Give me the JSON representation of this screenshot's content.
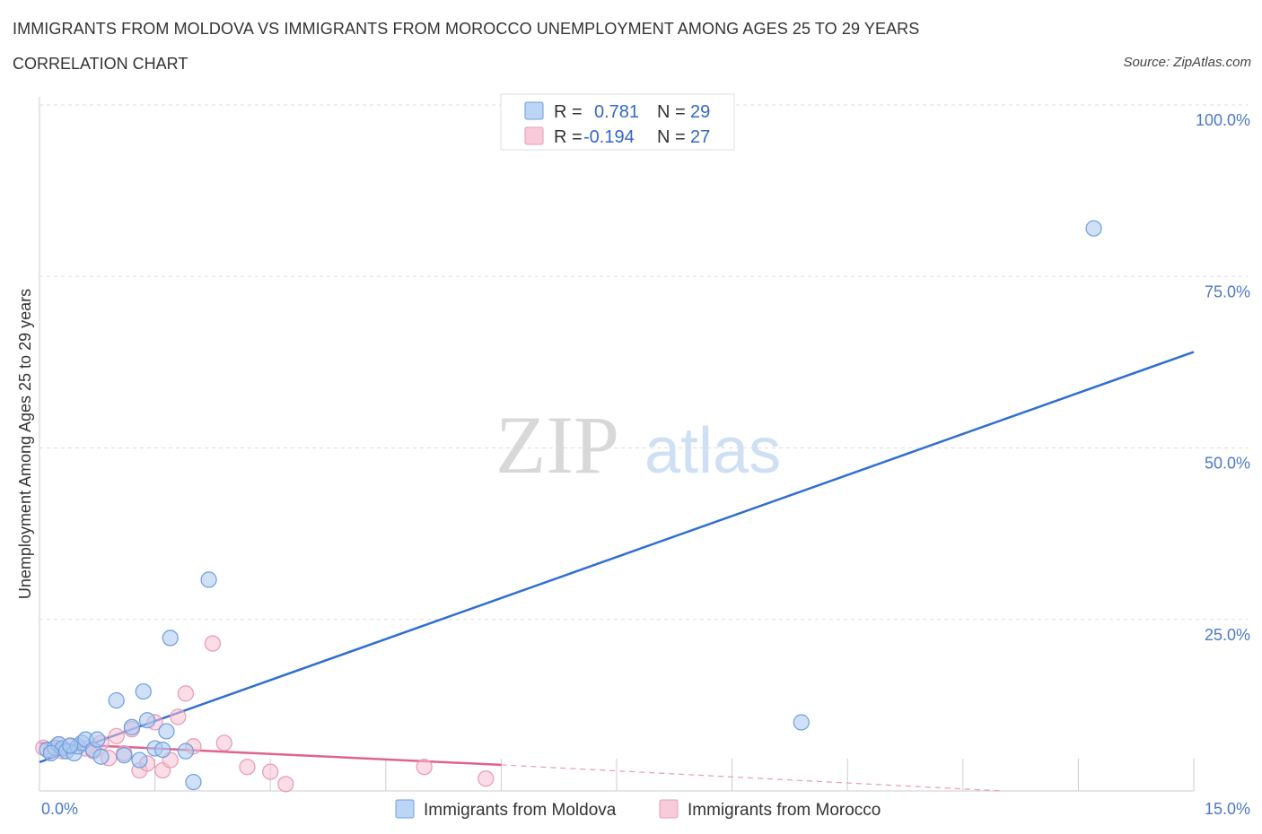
{
  "header": {
    "title": "IMMIGRANTS FROM MOLDOVA VS IMMIGRANTS FROM MOROCCO UNEMPLOYMENT AMONG AGES 25 TO 29 YEARS",
    "subtitle": "CORRELATION CHART",
    "source": "Source: ZipAtlas.com"
  },
  "watermark": {
    "zip": "ZIP",
    "atlas": "atlas"
  },
  "legend": {
    "r_label": "R =",
    "n_label": "N =",
    "moldova": {
      "r": "0.781",
      "n": "29"
    },
    "morocco": {
      "r": "-0.194",
      "n": "27"
    }
  },
  "colors": {
    "moldova_fill": "#aac8f0",
    "moldova_stroke": "#6a9ee0",
    "moldova_line": "#2f6fcf",
    "morocco_fill": "#f6c1d2",
    "morocco_stroke": "#e899b4",
    "morocco_line": "#e0628f"
  },
  "chart_data": {
    "type": "scatter",
    "title": "IMMIGRANTS FROM MOLDOVA VS IMMIGRANTS FROM MOROCCO UNEMPLOYMENT AMONG AGES 25 TO 29 YEARS",
    "xlabel": "",
    "ylabel": "Unemployment Among Ages 25 to 29 years",
    "xlim": [
      0,
      15
    ],
    "ylim": [
      0,
      100
    ],
    "x_tick_labels": [
      "0.0%",
      "15.0%"
    ],
    "y_tick_labels": [
      "100.0%",
      "75.0%",
      "50.0%",
      "25.0%"
    ],
    "y_tick_values": [
      100,
      75,
      50,
      25
    ],
    "series": [
      {
        "name": "Immigrants from Moldova",
        "points": [
          [
            0.1,
            6.0
          ],
          [
            0.2,
            6.3
          ],
          [
            0.25,
            6.8
          ],
          [
            0.3,
            6.2
          ],
          [
            0.35,
            5.8
          ],
          [
            0.45,
            5.5
          ],
          [
            0.5,
            6.5
          ],
          [
            0.55,
            7.0
          ],
          [
            0.6,
            7.5
          ],
          [
            0.7,
            6.0
          ],
          [
            0.75,
            7.5
          ],
          [
            0.8,
            5.0
          ],
          [
            1.0,
            13.2
          ],
          [
            1.1,
            5.2
          ],
          [
            1.2,
            9.3
          ],
          [
            1.3,
            4.5
          ],
          [
            1.35,
            14.5
          ],
          [
            1.4,
            10.3
          ],
          [
            1.5,
            6.2
          ],
          [
            1.6,
            6.0
          ],
          [
            1.65,
            8.7
          ],
          [
            1.7,
            22.3
          ],
          [
            1.9,
            5.8
          ],
          [
            2.0,
            1.3
          ],
          [
            2.2,
            30.8
          ],
          [
            9.9,
            10.0
          ],
          [
            13.7,
            82.0
          ],
          [
            0.15,
            5.5
          ],
          [
            0.4,
            6.6
          ]
        ],
        "trend": {
          "x": [
            0,
            15
          ],
          "y": [
            4.2,
            64.0
          ]
        }
      },
      {
        "name": "Immigrants from Morocco",
        "points": [
          [
            0.05,
            6.3
          ],
          [
            0.15,
            6.0
          ],
          [
            0.25,
            6.8
          ],
          [
            0.4,
            6.5
          ],
          [
            0.6,
            6.2
          ],
          [
            0.7,
            5.8
          ],
          [
            0.8,
            7.0
          ],
          [
            0.9,
            4.8
          ],
          [
            1.0,
            8.0
          ],
          [
            1.1,
            5.5
          ],
          [
            1.2,
            9.0
          ],
          [
            1.3,
            3.0
          ],
          [
            1.4,
            4.0
          ],
          [
            1.5,
            10.0
          ],
          [
            1.6,
            3.0
          ],
          [
            1.7,
            4.5
          ],
          [
            1.8,
            10.8
          ],
          [
            1.9,
            14.2
          ],
          [
            2.0,
            6.5
          ],
          [
            2.25,
            21.5
          ],
          [
            2.4,
            7.0
          ],
          [
            2.7,
            3.5
          ],
          [
            3.0,
            2.8
          ],
          [
            3.2,
            1.0
          ],
          [
            5.0,
            3.5
          ],
          [
            5.8,
            1.8
          ],
          [
            0.3,
            5.8
          ]
        ],
        "trend": {
          "x": [
            0,
            6.0
          ],
          "y": [
            7.0,
            3.8
          ]
        },
        "trend_dashed": {
          "x": [
            6.0,
            12.5
          ],
          "y": [
            3.8,
            0.0
          ]
        }
      }
    ]
  },
  "bottom_legend": {
    "moldova": "Immigrants from Moldova",
    "morocco": "Immigrants from Morocco"
  }
}
